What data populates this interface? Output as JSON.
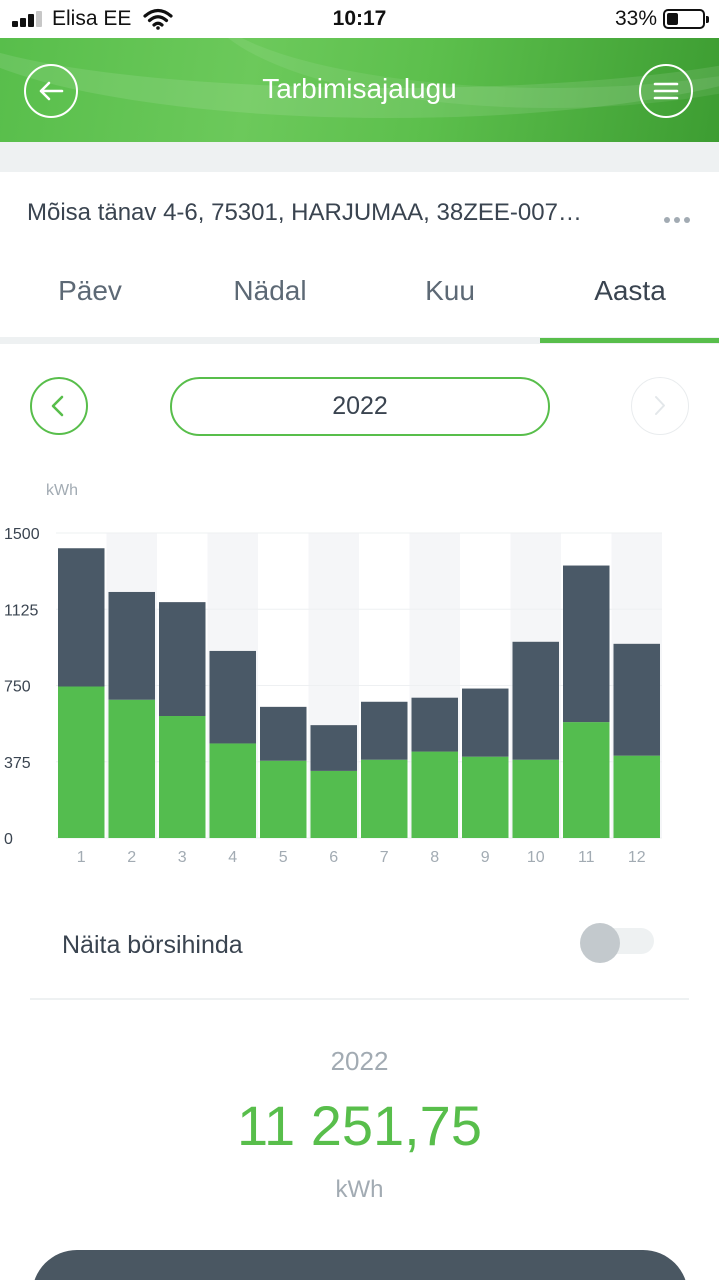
{
  "status_bar": {
    "carrier": "Elisa EE",
    "time": "10:17",
    "battery": "33%",
    "battery_level": 0.33,
    "signal_bars": 3
  },
  "header": {
    "title": "Tarbimisajalugu",
    "back_icon": "back-arrow-icon",
    "menu_icon": "hamburger-menu-icon",
    "colors": {
      "primary": "#58be4b",
      "dark": "#3d9d32"
    }
  },
  "address": {
    "text": "Mõisa tänav 4-6, 75301, HARJUMAA, 38ZEE-007…",
    "more_icon": "more-dots-icon"
  },
  "tabs": [
    {
      "label": "Päev",
      "active": false
    },
    {
      "label": "Nädal",
      "active": false
    },
    {
      "label": "Kuu",
      "active": false
    },
    {
      "label": "Aasta",
      "active": true
    }
  ],
  "period": {
    "label": "2022",
    "prev_icon": "chevron-left-icon",
    "next_icon": "chevron-right-icon"
  },
  "chart_data": {
    "type": "bar",
    "stacked": true,
    "unit": "kWh",
    "categories": [
      "1",
      "2",
      "3",
      "4",
      "5",
      "6",
      "7",
      "8",
      "9",
      "10",
      "11",
      "12"
    ],
    "series": [
      {
        "color": "#54bd4f",
        "values": [
          745,
          680,
          600,
          465,
          380,
          330,
          385,
          425,
          400,
          385,
          570,
          405
        ]
      },
      {
        "color": "#4a5967",
        "values": [
          680,
          530,
          560,
          455,
          265,
          225,
          285,
          265,
          335,
          580,
          770,
          550
        ]
      }
    ],
    "ylim": [
      0,
      1500
    ],
    "yticks": [
      "0",
      "375",
      "750",
      "1125",
      "1500"
    ],
    "grid": true
  },
  "toggle": {
    "label": "Näita börsihinda",
    "on": false
  },
  "summary": {
    "year": "2022",
    "value": "11 251,75",
    "unit": "kWh"
  }
}
